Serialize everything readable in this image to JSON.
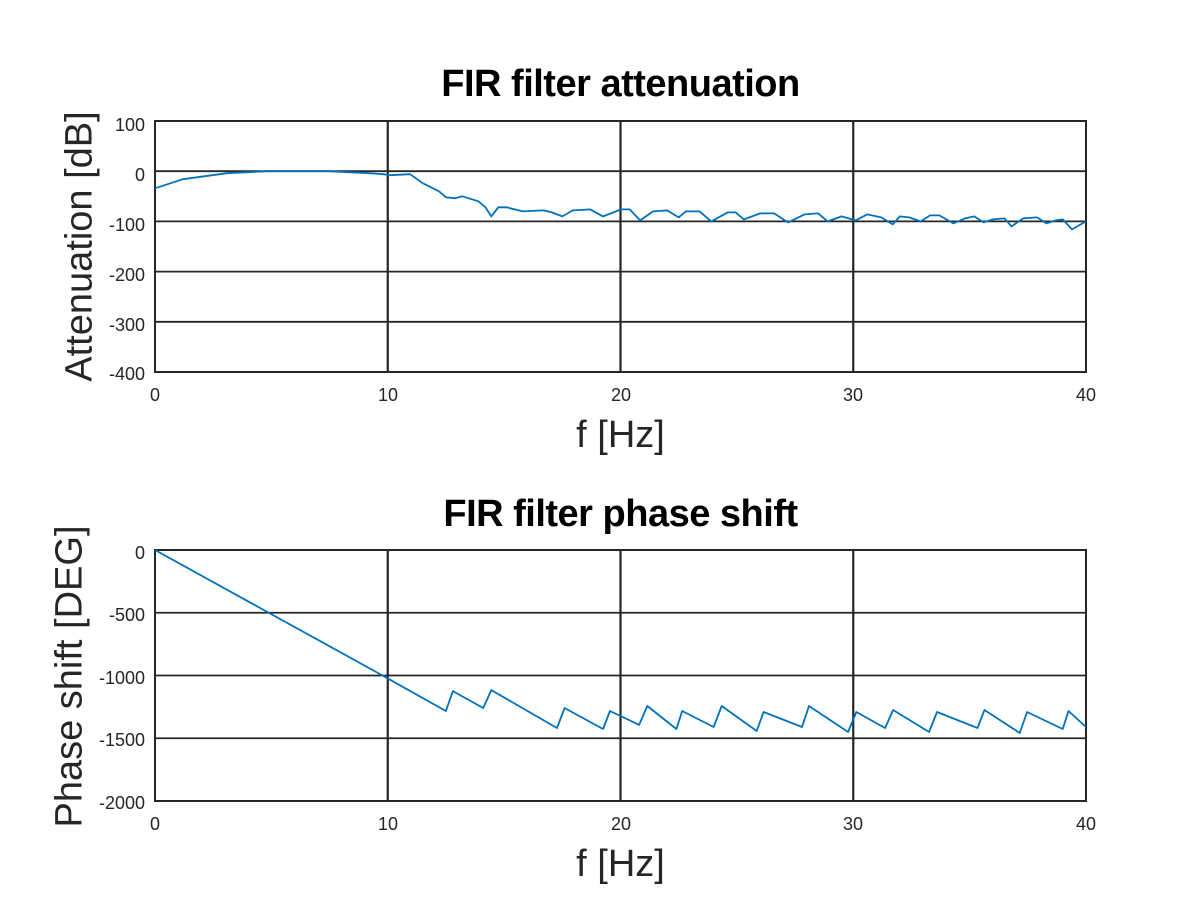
{
  "figure": {
    "background": "#ffffff",
    "line_color": "#0072bd",
    "grid_color": "#262626"
  },
  "chart_data": [
    {
      "type": "line",
      "title": "FIR filter attenuation",
      "xlabel": "f [Hz]",
      "ylabel": "Attenuation [dB]",
      "xlim": [
        0,
        40
      ],
      "ylim": [
        -400,
        100
      ],
      "xticks": [
        "0",
        "10",
        "20",
        "30",
        "40"
      ],
      "yticks": [
        "100",
        "0",
        "-100",
        "-200",
        "-300",
        "-400"
      ],
      "grid": true,
      "legend": null,
      "series": [
        {
          "name": "attenuation",
          "x": [
            0,
            1.2,
            3.1,
            4.8,
            7.4,
            9.2,
            10.1,
            10.96,
            9.8,
            11.5,
            12.2,
            12.5,
            12.9,
            13.2,
            13.9,
            14.2,
            14.45,
            14.75,
            15.1,
            15.8,
            16.7,
            17.05,
            17.5,
            17.95,
            18.7,
            19.25,
            19.7,
            20.0,
            20.4,
            20.84,
            21.4,
            22.0,
            22.5,
            22.8,
            23.4,
            23.9,
            24.6,
            24.95,
            25.3,
            26.0,
            26.6,
            27.2,
            27.9,
            28.5,
            28.9,
            29.5,
            30.1,
            30.6,
            31.2,
            31.7,
            32.0,
            32.4,
            32.9,
            33.3,
            33.7,
            34.3,
            34.8,
            35.2,
            35.6,
            36.0,
            36.5,
            36.8,
            37.3,
            37.9,
            38.3,
            38.7,
            39.0,
            39.4,
            40.0
          ],
          "y": [
            -34,
            -16,
            -4,
            0,
            0,
            -4,
            -8,
            -6,
            -6,
            -24,
            -40,
            -52,
            -54,
            -50,
            -60,
            -72,
            -90,
            -72,
            -72,
            -80,
            -78,
            -82,
            -90,
            -78,
            -76,
            -90,
            -82,
            -76,
            -76,
            -98,
            -80,
            -78,
            -92,
            -80,
            -80,
            -100,
            -82,
            -82,
            -96,
            -84,
            -84,
            -102,
            -86,
            -84,
            -100,
            -90,
            -98,
            -86,
            -92,
            -106,
            -90,
            -92,
            -100,
            -88,
            -88,
            -104,
            -94,
            -90,
            -102,
            -96,
            -94,
            -110,
            -94,
            -92,
            -104,
            -98,
            -96,
            -116,
            -100
          ]
        }
      ]
    },
    {
      "type": "line",
      "title": "FIR filter phase shift",
      "xlabel": "f [Hz]",
      "ylabel": "Phase shift [DEG]",
      "xlim": [
        0,
        40
      ],
      "ylim": [
        -2000,
        0
      ],
      "xticks": [
        "0",
        "10",
        "20",
        "30",
        "40"
      ],
      "yticks": [
        "0",
        "-500",
        "-1000",
        "-1500",
        "-2000"
      ],
      "grid": true,
      "legend": null,
      "series": [
        {
          "name": "phase",
          "x": [
            0,
            9.66,
            12.5,
            12.8,
            14.1,
            14.45,
            17.27,
            17.6,
            19.25,
            19.55,
            20.8,
            21.15,
            22.4,
            22.65,
            24.0,
            24.35,
            25.85,
            26.15,
            27.8,
            28.1,
            29.78,
            30.13,
            31.37,
            31.71,
            33.26,
            33.6,
            35.34,
            35.64,
            37.15,
            37.47,
            39.0,
            39.25,
            40.0
          ],
          "y": [
            0,
            -988,
            -1283,
            -1124,
            -1259,
            -1116,
            -1418,
            -1259,
            -1426,
            -1283,
            -1394,
            -1243,
            -1426,
            -1283,
            -1410,
            -1243,
            -1442,
            -1291,
            -1410,
            -1243,
            -1450,
            -1291,
            -1418,
            -1275,
            -1450,
            -1291,
            -1418,
            -1275,
            -1458,
            -1291,
            -1426,
            -1283,
            -1410
          ]
        }
      ]
    }
  ]
}
